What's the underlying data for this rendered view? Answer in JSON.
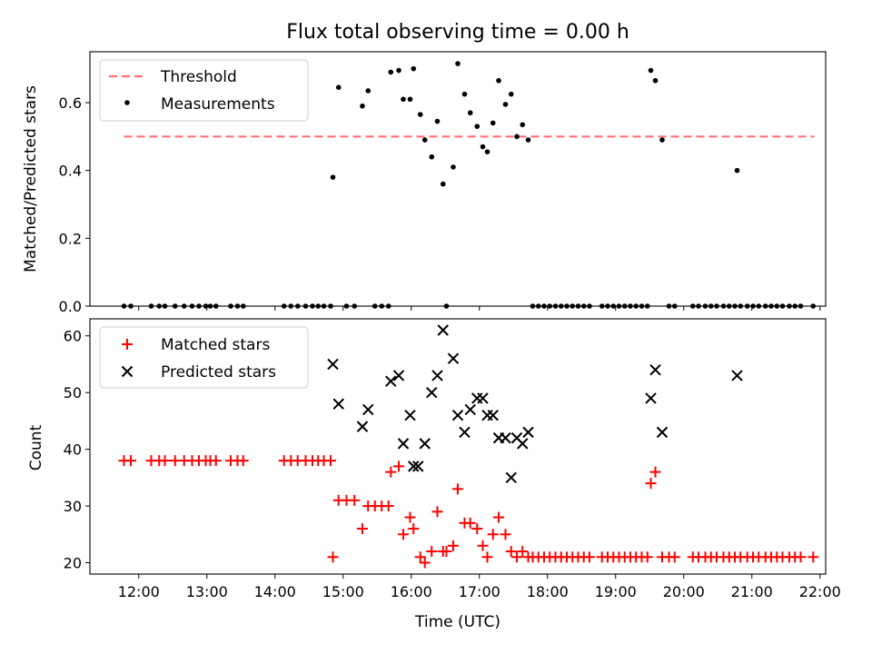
{
  "chart_data": [
    {
      "type": "scatter",
      "title": "Flux total observing time = 0.00 h",
      "xlabel": "",
      "ylabel": "Matched/Predicted stars",
      "xlim": [
        "11:17",
        "22:05"
      ],
      "ylim": [
        0,
        0.75
      ],
      "yticks": [
        "0.0",
        "0.2",
        "0.4",
        "0.6"
      ],
      "grid": false,
      "legend": {
        "placement": "upper-left",
        "entries": [
          "Threshold",
          "Measurements"
        ]
      },
      "threshold": {
        "name": "Threshold",
        "value": 0.5,
        "x_start": "11:47",
        "x_end": "21:55",
        "color": "#ff7070",
        "style": "dashed"
      },
      "series": [
        {
          "name": "Measurements",
          "color": "#000000",
          "marker": "dot",
          "points": [
            [
              "11:47",
              0
            ],
            [
              "11:53",
              0
            ],
            [
              "12:11",
              0
            ],
            [
              "12:18",
              0
            ],
            [
              "12:23",
              0
            ],
            [
              "12:32",
              0
            ],
            [
              "12:40",
              0
            ],
            [
              "12:47",
              0
            ],
            [
              "12:53",
              0
            ],
            [
              "12:59",
              0
            ],
            [
              "13:03",
              0
            ],
            [
              "13:08",
              0
            ],
            [
              "13:21",
              0
            ],
            [
              "13:27",
              0
            ],
            [
              "13:32",
              0
            ],
            [
              "14:08",
              0
            ],
            [
              "14:14",
              0
            ],
            [
              "14:20",
              0
            ],
            [
              "14:27",
              0
            ],
            [
              "14:33",
              0
            ],
            [
              "14:38",
              0
            ],
            [
              "14:43",
              0
            ],
            [
              "14:49",
              0
            ],
            [
              "14:51",
              0.38
            ],
            [
              "14:56",
              0.645
            ],
            [
              "15:03",
              0
            ],
            [
              "15:10",
              0
            ],
            [
              "15:17",
              0.59
            ],
            [
              "15:22",
              0.635
            ],
            [
              "15:28",
              0
            ],
            [
              "15:34",
              0
            ],
            [
              "15:40",
              0
            ],
            [
              "15:42",
              0.69
            ],
            [
              "15:49",
              0.695
            ],
            [
              "15:53",
              0.61
            ],
            [
              "15:59",
              0.61
            ],
            [
              "16:02",
              0.7
            ],
            [
              "16:08",
              0.565
            ],
            [
              "16:12",
              0.49
            ],
            [
              "16:18",
              0.44
            ],
            [
              "16:23",
              0.545
            ],
            [
              "16:28",
              0.36
            ],
            [
              "16:31",
              0
            ],
            [
              "16:37",
              0.41
            ],
            [
              "16:41",
              0.715
            ],
            [
              "16:47",
              0.625
            ],
            [
              "16:52",
              0.57
            ],
            [
              "16:58",
              0.53
            ],
            [
              "17:03",
              0.47
            ],
            [
              "17:07",
              0.455
            ],
            [
              "17:12",
              0.54
            ],
            [
              "17:17",
              0.665
            ],
            [
              "17:23",
              0.595
            ],
            [
              "17:28",
              0.625
            ],
            [
              "17:33",
              0.5
            ],
            [
              "17:38",
              0.535
            ],
            [
              "17:43",
              0.49
            ],
            [
              "17:47",
              0
            ],
            [
              "17:52",
              0
            ],
            [
              "17:57",
              0
            ],
            [
              "18:02",
              0
            ],
            [
              "18:07",
              0
            ],
            [
              "18:12",
              0
            ],
            [
              "18:17",
              0
            ],
            [
              "18:22",
              0
            ],
            [
              "18:27",
              0
            ],
            [
              "18:32",
              0
            ],
            [
              "18:37",
              0
            ],
            [
              "18:48",
              0
            ],
            [
              "18:53",
              0
            ],
            [
              "18:58",
              0
            ],
            [
              "19:03",
              0
            ],
            [
              "19:08",
              0
            ],
            [
              "19:13",
              0
            ],
            [
              "19:18",
              0
            ],
            [
              "19:23",
              0
            ],
            [
              "19:28",
              0
            ],
            [
              "19:31",
              0.695
            ],
            [
              "19:35",
              0.665
            ],
            [
              "19:41",
              0.49
            ],
            [
              "19:47",
              0
            ],
            [
              "19:52",
              0
            ],
            [
              "20:08",
              0
            ],
            [
              "20:13",
              0
            ],
            [
              "20:19",
              0
            ],
            [
              "20:24",
              0
            ],
            [
              "20:29",
              0
            ],
            [
              "20:35",
              0
            ],
            [
              "20:40",
              0
            ],
            [
              "20:45",
              0
            ],
            [
              "20:50",
              0
            ],
            [
              "20:56",
              0
            ],
            [
              "20:47",
              0.4
            ],
            [
              "21:01",
              0
            ],
            [
              "21:06",
              0
            ],
            [
              "21:12",
              0
            ],
            [
              "21:17",
              0
            ],
            [
              "21:22",
              0
            ],
            [
              "21:27",
              0
            ],
            [
              "21:33",
              0
            ],
            [
              "21:38",
              0
            ],
            [
              "21:43",
              0
            ],
            [
              "21:54",
              0
            ]
          ]
        }
      ]
    },
    {
      "type": "scatter",
      "title": "",
      "xlabel": "Time (UTC)",
      "ylabel": "Count",
      "xlim": [
        "11:17",
        "22:05"
      ],
      "ylim": [
        18,
        63
      ],
      "yticks": [
        "20",
        "30",
        "40",
        "50",
        "60"
      ],
      "xticks": [
        "12:00",
        "13:00",
        "14:00",
        "15:00",
        "16:00",
        "17:00",
        "18:00",
        "19:00",
        "20:00",
        "21:00",
        "22:00"
      ],
      "grid": false,
      "legend": {
        "placement": "upper-left",
        "entries": [
          "Matched stars",
          "Predicted stars"
        ]
      },
      "series": [
        {
          "name": "Matched stars",
          "color": "#ff0000",
          "marker": "plus",
          "points": [
            [
              "11:47",
              38
            ],
            [
              "11:53",
              38
            ],
            [
              "12:11",
              38
            ],
            [
              "12:18",
              38
            ],
            [
              "12:23",
              38
            ],
            [
              "12:32",
              38
            ],
            [
              "12:40",
              38
            ],
            [
              "12:47",
              38
            ],
            [
              "12:53",
              38
            ],
            [
              "12:59",
              38
            ],
            [
              "13:03",
              38
            ],
            [
              "13:08",
              38
            ],
            [
              "13:21",
              38
            ],
            [
              "13:27",
              38
            ],
            [
              "13:32",
              38
            ],
            [
              "14:08",
              38
            ],
            [
              "14:14",
              38
            ],
            [
              "14:20",
              38
            ],
            [
              "14:27",
              38
            ],
            [
              "14:33",
              38
            ],
            [
              "14:38",
              38
            ],
            [
              "14:43",
              38
            ],
            [
              "14:49",
              38
            ],
            [
              "14:51",
              21
            ],
            [
              "14:56",
              31
            ],
            [
              "15:03",
              31
            ],
            [
              "15:10",
              31
            ],
            [
              "15:17",
              26
            ],
            [
              "15:22",
              30
            ],
            [
              "15:28",
              30
            ],
            [
              "15:34",
              30
            ],
            [
              "15:40",
              30
            ],
            [
              "15:42",
              36
            ],
            [
              "15:49",
              37
            ],
            [
              "15:53",
              25
            ],
            [
              "15:59",
              28
            ],
            [
              "16:02",
              26
            ],
            [
              "16:08",
              21
            ],
            [
              "16:12",
              20
            ],
            [
              "16:18",
              22
            ],
            [
              "16:23",
              29
            ],
            [
              "16:28",
              22
            ],
            [
              "16:31",
              22
            ],
            [
              "16:37",
              23
            ],
            [
              "16:41",
              33
            ],
            [
              "16:47",
              27
            ],
            [
              "16:52",
              27
            ],
            [
              "16:58",
              26
            ],
            [
              "17:03",
              23
            ],
            [
              "17:07",
              21
            ],
            [
              "17:12",
              25
            ],
            [
              "17:17",
              28
            ],
            [
              "17:23",
              25
            ],
            [
              "17:28",
              22
            ],
            [
              "17:33",
              21
            ],
            [
              "17:38",
              22
            ],
            [
              "17:43",
              21
            ],
            [
              "17:47",
              21
            ],
            [
              "17:52",
              21
            ],
            [
              "17:57",
              21
            ],
            [
              "18:02",
              21
            ],
            [
              "18:07",
              21
            ],
            [
              "18:12",
              21
            ],
            [
              "18:17",
              21
            ],
            [
              "18:22",
              21
            ],
            [
              "18:27",
              21
            ],
            [
              "18:32",
              21
            ],
            [
              "18:37",
              21
            ],
            [
              "18:48",
              21
            ],
            [
              "18:53",
              21
            ],
            [
              "18:58",
              21
            ],
            [
              "19:03",
              21
            ],
            [
              "19:08",
              21
            ],
            [
              "19:13",
              21
            ],
            [
              "19:18",
              21
            ],
            [
              "19:23",
              21
            ],
            [
              "19:28",
              21
            ],
            [
              "19:31",
              34
            ],
            [
              "19:35",
              36
            ],
            [
              "19:41",
              21
            ],
            [
              "19:47",
              21
            ],
            [
              "19:52",
              21
            ],
            [
              "20:08",
              21
            ],
            [
              "20:13",
              21
            ],
            [
              "20:19",
              21
            ],
            [
              "20:24",
              21
            ],
            [
              "20:29",
              21
            ],
            [
              "20:35",
              21
            ],
            [
              "20:40",
              21
            ],
            [
              "20:45",
              21
            ],
            [
              "20:50",
              21
            ],
            [
              "20:56",
              21
            ],
            [
              "21:01",
              21
            ],
            [
              "21:06",
              21
            ],
            [
              "21:12",
              21
            ],
            [
              "21:17",
              21
            ],
            [
              "21:22",
              21
            ],
            [
              "21:27",
              21
            ],
            [
              "21:33",
              21
            ],
            [
              "21:38",
              21
            ],
            [
              "21:43",
              21
            ],
            [
              "21:54",
              21
            ]
          ]
        },
        {
          "name": "Predicted stars",
          "color": "#000000",
          "marker": "x",
          "points": [
            [
              "14:51",
              55
            ],
            [
              "14:56",
              48
            ],
            [
              "15:17",
              44
            ],
            [
              "15:22",
              47
            ],
            [
              "15:42",
              52
            ],
            [
              "15:49",
              53
            ],
            [
              "15:53",
              41
            ],
            [
              "15:59",
              46
            ],
            [
              "16:02",
              37
            ],
            [
              "16:06",
              37
            ],
            [
              "16:12",
              41
            ],
            [
              "16:18",
              50
            ],
            [
              "16:23",
              53
            ],
            [
              "16:28",
              61
            ],
            [
              "16:37",
              56
            ],
            [
              "16:41",
              46
            ],
            [
              "16:47",
              43
            ],
            [
              "16:52",
              47
            ],
            [
              "16:58",
              49
            ],
            [
              "17:03",
              49
            ],
            [
              "17:07",
              46
            ],
            [
              "17:12",
              46
            ],
            [
              "17:17",
              42
            ],
            [
              "17:23",
              42
            ],
            [
              "17:28",
              35
            ],
            [
              "17:33",
              42
            ],
            [
              "17:38",
              41
            ],
            [
              "17:43",
              43
            ],
            [
              "19:31",
              49
            ],
            [
              "19:35",
              54
            ],
            [
              "19:41",
              43
            ],
            [
              "20:47",
              53
            ]
          ]
        }
      ]
    }
  ]
}
